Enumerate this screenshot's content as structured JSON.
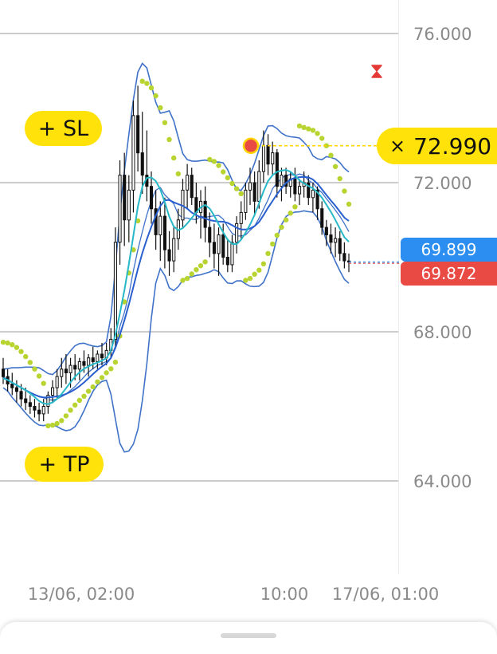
{
  "chart_data": {
    "type": "candlestick",
    "y_ticks": [
      "76.000",
      "72.000",
      "68.000",
      "64.000"
    ],
    "y_tick_values": [
      76,
      72,
      68,
      64
    ],
    "ylim": [
      62.3,
      76.9
    ],
    "x_ticks": [
      "13/06, 02:00",
      "10:00",
      "17/06, 01:00"
    ],
    "grid": "horizontal",
    "candles": [
      [
        67.0,
        67.3,
        66.6,
        66.8
      ],
      [
        66.8,
        67.0,
        66.4,
        66.6
      ],
      [
        66.6,
        66.9,
        66.3,
        66.5
      ],
      [
        66.5,
        66.7,
        66.1,
        66.4
      ],
      [
        66.4,
        66.6,
        66.0,
        66.2
      ],
      [
        66.2,
        66.5,
        65.9,
        66.1
      ],
      [
        66.1,
        66.3,
        65.8,
        66.0
      ],
      [
        66.0,
        66.2,
        65.7,
        65.9
      ],
      [
        65.9,
        66.1,
        65.6,
        65.8
      ],
      [
        65.8,
        66.2,
        65.6,
        66.0
      ],
      [
        66.0,
        66.4,
        65.8,
        66.3
      ],
      [
        66.3,
        66.7,
        66.1,
        66.5
      ],
      [
        66.5,
        67.0,
        66.2,
        66.8
      ],
      [
        66.8,
        67.3,
        66.5,
        67.0
      ],
      [
        67.0,
        67.4,
        66.6,
        66.9
      ],
      [
        66.9,
        67.3,
        66.5,
        67.1
      ],
      [
        67.1,
        67.4,
        66.7,
        67.0
      ],
      [
        67.0,
        67.3,
        66.7,
        67.2
      ],
      [
        67.2,
        67.5,
        66.9,
        67.1
      ],
      [
        67.1,
        67.4,
        66.8,
        67.3
      ],
      [
        67.3,
        67.6,
        67.0,
        67.2
      ],
      [
        67.2,
        67.5,
        67.0,
        67.4
      ],
      [
        67.4,
        67.7,
        67.1,
        67.3
      ],
      [
        67.3,
        67.7,
        67.1,
        67.5
      ],
      [
        67.5,
        68.1,
        67.3,
        67.8
      ],
      [
        67.8,
        70.8,
        67.6,
        70.4
      ],
      [
        70.4,
        72.6,
        69.8,
        72.2
      ],
      [
        72.2,
        72.8,
        70.3,
        71.0
      ],
      [
        71.0,
        72.2,
        70.4,
        71.8
      ],
      [
        71.8,
        74.2,
        71.2,
        73.8
      ],
      [
        73.8,
        74.6,
        72.3,
        72.8
      ],
      [
        72.8,
        73.9,
        71.7,
        72.2
      ],
      [
        72.2,
        73.4,
        71.5,
        71.9
      ],
      [
        71.9,
        72.3,
        70.9,
        71.3
      ],
      [
        71.3,
        71.8,
        70.2,
        70.6
      ],
      [
        70.6,
        71.5,
        69.9,
        71.1
      ],
      [
        71.1,
        71.6,
        69.7,
        70.2
      ],
      [
        70.2,
        70.7,
        69.5,
        69.9
      ],
      [
        69.9,
        70.8,
        69.6,
        70.5
      ],
      [
        70.5,
        71.3,
        70.2,
        71.0
      ],
      [
        71.0,
        72.1,
        70.8,
        71.8
      ],
      [
        71.8,
        72.5,
        71.3,
        72.2
      ],
      [
        72.2,
        72.4,
        71.4,
        71.6
      ],
      [
        71.6,
        72.0,
        70.9,
        71.2
      ],
      [
        71.2,
        71.8,
        70.5,
        71.5
      ],
      [
        71.5,
        71.9,
        70.4,
        70.8
      ],
      [
        70.8,
        71.2,
        70.0,
        70.4
      ],
      [
        70.4,
        70.9,
        69.7,
        70.1
      ],
      [
        70.1,
        70.8,
        69.5,
        70.6
      ],
      [
        70.6,
        70.9,
        69.8,
        70.0
      ],
      [
        70.0,
        70.5,
        69.6,
        69.8
      ],
      [
        69.8,
        70.6,
        69.6,
        70.4
      ],
      [
        70.4,
        71.1,
        70.1,
        70.9
      ],
      [
        70.9,
        71.5,
        70.5,
        71.2
      ],
      [
        71.2,
        72.0,
        71.0,
        71.8
      ],
      [
        71.8,
        72.4,
        71.4,
        72.0
      ],
      [
        72.0,
        72.3,
        71.1,
        71.5
      ],
      [
        71.5,
        72.6,
        71.3,
        72.3
      ],
      [
        72.3,
        73.4,
        72.0,
        73.0
      ],
      [
        73.0,
        73.3,
        72.2,
        72.5
      ],
      [
        72.5,
        73.1,
        72.2,
        72.8
      ],
      [
        72.8,
        72.9,
        71.6,
        71.9
      ],
      [
        71.9,
        72.4,
        71.5,
        72.2
      ],
      [
        72.2,
        72.4,
        71.7,
        71.9
      ],
      [
        71.9,
        72.3,
        71.6,
        72.1
      ],
      [
        72.1,
        72.4,
        71.5,
        71.7
      ],
      [
        71.7,
        72.1,
        71.4,
        71.9
      ],
      [
        71.9,
        72.3,
        71.6,
        72.0
      ],
      [
        72.0,
        72.2,
        71.4,
        71.6
      ],
      [
        71.6,
        72.0,
        71.2,
        71.8
      ],
      [
        71.8,
        71.9,
        71.0,
        71.3
      ],
      [
        71.3,
        71.5,
        70.6,
        70.8
      ],
      [
        70.8,
        71.0,
        70.3,
        70.6
      ],
      [
        70.6,
        70.9,
        70.1,
        70.4
      ],
      [
        70.4,
        70.8,
        70.0,
        70.5
      ],
      [
        70.5,
        70.7,
        69.9,
        70.1
      ],
      [
        70.1,
        70.4,
        69.7,
        69.9
      ],
      [
        69.9,
        70.1,
        69.6,
        69.87
      ]
    ],
    "current_price_ask": "69.899",
    "current_price_bid": "69.872",
    "pending_order_price": "72.990",
    "pending_order_value": 72.99
  },
  "overlays": {
    "sl_label": "+ SL",
    "tp_label": "+ TP",
    "order_close_symbol": "×",
    "hourglass_icon": "hourglass-icon"
  },
  "colors": {
    "candle": "#111111",
    "bollinger": "#3f72c8",
    "ma_teal": "#27b8c7",
    "ma_blue": "#2a5fcf",
    "sar_dots": "#b8d430",
    "order_line": "#ffd400",
    "ask": "#2b8ef0",
    "bid": "#ea4a44",
    "accent_yellow": "#ffe20a"
  }
}
